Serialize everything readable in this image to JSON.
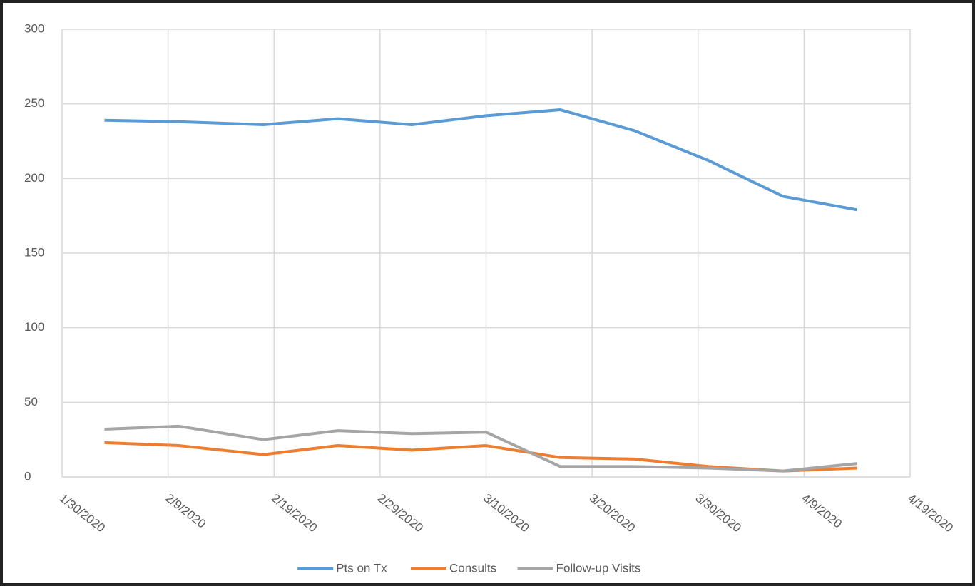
{
  "chart_data": {
    "type": "line",
    "x": [
      "2/3/2020",
      "2/10/2020",
      "2/18/2020",
      "2/25/2020",
      "3/3/2020",
      "3/10/2020",
      "3/17/2020",
      "3/24/2020",
      "3/31/2020",
      "4/7/2020",
      "4/14/2020"
    ],
    "series": [
      {
        "name": "Pts on Tx",
        "color": "#5b9bd5",
        "values": [
          239,
          238,
          236,
          240,
          236,
          242,
          246,
          232,
          212,
          188,
          179
        ]
      },
      {
        "name": "Consults",
        "color": "#ed7d31",
        "values": [
          23,
          21,
          15,
          21,
          18,
          21,
          13,
          12,
          7,
          4,
          6
        ]
      },
      {
        "name": "Follow-up Visits",
        "color": "#a5a5a5",
        "values": [
          32,
          34,
          25,
          31,
          29,
          30,
          7,
          7,
          6,
          4,
          9
        ]
      }
    ],
    "xlim": [
      "1/30/2020",
      "4/19/2020"
    ],
    "xticks": [
      "1/30/2020",
      "2/9/2020",
      "2/19/2020",
      "2/29/2020",
      "3/10/2020",
      "3/20/2020",
      "3/30/2020",
      "4/9/2020",
      "4/19/2020"
    ],
    "ylim": [
      0,
      300
    ],
    "yticks": [
      0,
      50,
      100,
      150,
      200,
      250,
      300
    ],
    "grid": true,
    "legend": "bottom"
  }
}
